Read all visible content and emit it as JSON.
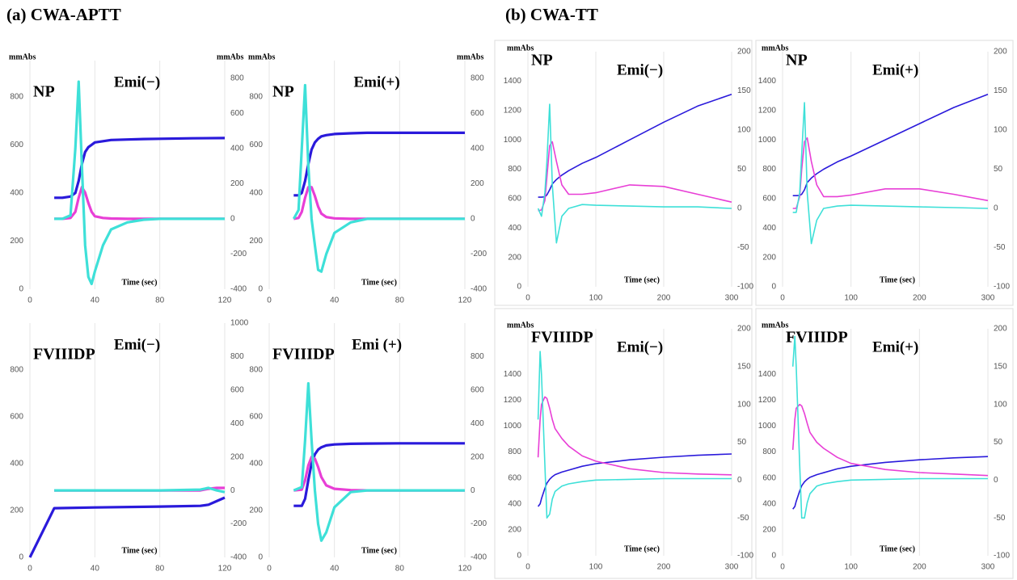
{
  "panel_titles": [
    "(a) CWA-APTT",
    "(b) CWA-TT"
  ],
  "chart_data": [
    {
      "type": "line",
      "title": "NP",
      "subtitle": "Emi(−)",
      "y_label": "mmAbs",
      "y2_label": "mmAbs",
      "x_label": "Time (sec)",
      "xlim": [
        0,
        120
      ],
      "xticks": [
        0,
        40,
        80,
        120
      ],
      "ylim": [
        0,
        950
      ],
      "yticks": [
        0,
        200,
        400,
        600,
        800
      ],
      "y2lim": [
        -400,
        900
      ],
      "y2ticks": [
        -400,
        -200,
        0,
        200,
        400,
        600,
        800
      ],
      "grid": true,
      "x": [
        15,
        20,
        25,
        28,
        30,
        32,
        34,
        36,
        38,
        40,
        45,
        50,
        60,
        70,
        80,
        100,
        120
      ],
      "series": [
        {
          "color": "#2a1adb",
          "values": [
            380,
            380,
            385,
            400,
            450,
            520,
            570,
            590,
            600,
            610,
            615,
            620,
            622,
            624,
            625,
            627,
            628
          ]
        },
        {
          "color": "#e83fd6",
          "axis": "y2",
          "values": [
            0,
            0,
            5,
            40,
            120,
            180,
            150,
            90,
            40,
            15,
            5,
            2,
            0,
            0,
            0,
            0,
            0
          ]
        },
        {
          "color": "#3ee0d8",
          "axis": "y2",
          "values": [
            0,
            0,
            20,
            400,
            780,
            300,
            -150,
            -330,
            -370,
            -300,
            -150,
            -60,
            -20,
            -5,
            0,
            0,
            0
          ]
        }
      ]
    },
    {
      "type": "line",
      "title": "NP",
      "subtitle": "Emi(+)",
      "y_label": "mmAbs",
      "y2_label": "mmAbs",
      "x_label": "Time (sec)",
      "xlim": [
        0,
        120
      ],
      "xticks": [
        0,
        40,
        80,
        120
      ],
      "ylim": [
        0,
        950
      ],
      "yticks": [
        0,
        200,
        400,
        600,
        800
      ],
      "y2lim": [
        -400,
        900
      ],
      "y2ticks": [
        -400,
        -200,
        0,
        200,
        400,
        600,
        800
      ],
      "grid": true,
      "x": [
        15,
        18,
        20,
        22,
        24,
        26,
        28,
        30,
        32,
        35,
        40,
        50,
        60,
        80,
        100,
        120
      ],
      "series": [
        {
          "color": "#2a1adb",
          "values": [
            390,
            390,
            400,
            450,
            520,
            580,
            610,
            625,
            635,
            640,
            645,
            648,
            650,
            650,
            650,
            650
          ]
        },
        {
          "color": "#e83fd6",
          "axis": "y2",
          "values": [
            0,
            5,
            40,
            120,
            180,
            180,
            130,
            70,
            30,
            10,
            3,
            0,
            0,
            0,
            0,
            0
          ]
        },
        {
          "color": "#3ee0d8",
          "axis": "y2",
          "values": [
            0,
            50,
            400,
            760,
            300,
            0,
            -150,
            -290,
            -300,
            -200,
            -80,
            -20,
            0,
            0,
            0,
            0
          ]
        }
      ]
    },
    {
      "type": "line",
      "title": "FVIIIDP",
      "subtitle": "Emi(−)",
      "x_label": "Time (sec)",
      "xlim": [
        0,
        120
      ],
      "xticks": [
        0,
        40,
        80,
        120
      ],
      "ylim": [
        0,
        1000
      ],
      "yticks": [
        0,
        200,
        400,
        600,
        800
      ],
      "y2lim": [
        -400,
        1000
      ],
      "y2ticks": [
        -400,
        -200,
        0,
        200,
        400,
        600,
        800,
        1000
      ],
      "grid": true,
      "x": [
        0,
        15,
        40,
        80,
        105,
        110,
        115,
        120
      ],
      "series": [
        {
          "color": "#2a1adb",
          "values": [
            0,
            210,
            213,
            217,
            220,
            225,
            240,
            255
          ]
        },
        {
          "color": "#e83fd6",
          "axis": "y2",
          "values": [
            null,
            0,
            0,
            0,
            0,
            10,
            15,
            15
          ]
        },
        {
          "color": "#3ee0d8",
          "axis": "y2",
          "values": [
            null,
            0,
            0,
            0,
            5,
            15,
            0,
            -10
          ]
        }
      ]
    },
    {
      "type": "line",
      "title": "FVIIIDP",
      "subtitle": "Emi (+)",
      "x_label": "Time (sec)",
      "xlim": [
        0,
        120
      ],
      "xticks": [
        0,
        40,
        80,
        120
      ],
      "ylim": [
        0,
        1000
      ],
      "yticks": [
        0,
        200,
        400,
        600,
        800
      ],
      "y2lim": [
        -400,
        1000
      ],
      "y2ticks": [
        -400,
        -200,
        0,
        200,
        400,
        600,
        800
      ],
      "grid": true,
      "x": [
        15,
        20,
        22,
        24,
        26,
        28,
        30,
        32,
        35,
        40,
        50,
        60,
        80,
        100,
        120
      ],
      "series": [
        {
          "color": "#2a1adb",
          "values": [
            220,
            220,
            250,
            330,
            400,
            440,
            460,
            470,
            478,
            482,
            485,
            486,
            487,
            487,
            487
          ]
        },
        {
          "color": "#e83fd6",
          "axis": "y2",
          "values": [
            0,
            5,
            60,
            150,
            200,
            190,
            140,
            80,
            30,
            10,
            2,
            0,
            0,
            0,
            0
          ]
        },
        {
          "color": "#3ee0d8",
          "axis": "y2",
          "values": [
            0,
            20,
            300,
            640,
            300,
            0,
            -200,
            -300,
            -250,
            -100,
            -10,
            0,
            0,
            0,
            0
          ]
        }
      ]
    },
    {
      "type": "line",
      "title": "NP",
      "subtitle": "Emi(−)",
      "y_label": "mmAbs",
      "x_label": "Time (sec)",
      "xlim": [
        0,
        300
      ],
      "xticks": [
        0,
        100,
        200,
        300
      ],
      "ylim": [
        0,
        1600
      ],
      "yticks": [
        0,
        200,
        400,
        600,
        800,
        1000,
        1200,
        1400
      ],
      "y2lim": [
        -100,
        200
      ],
      "y2ticks": [
        -100,
        -50,
        0,
        50,
        100,
        150,
        200
      ],
      "grid": true,
      "x": [
        15,
        20,
        25,
        28,
        32,
        36,
        42,
        50,
        60,
        80,
        100,
        150,
        200,
        250,
        300
      ],
      "series": [
        {
          "color": "#2a1adb",
          "values": [
            610,
            610,
            612,
            625,
            660,
            700,
            730,
            760,
            790,
            840,
            880,
            1000,
            1120,
            1230,
            1310
          ]
        },
        {
          "color": "#e83fd6",
          "axis": "y2",
          "values": [
            -3,
            -2,
            10,
            40,
            80,
            85,
            60,
            30,
            18,
            18,
            20,
            30,
            28,
            18,
            8
          ]
        },
        {
          "color": "#3ee0d8",
          "axis": "y2",
          "values": [
            0,
            -10,
            20,
            60,
            133,
            30,
            -44,
            -10,
            0,
            5,
            4,
            3,
            2,
            2,
            0
          ]
        }
      ]
    },
    {
      "type": "line",
      "title": "NP",
      "subtitle": "Emi(+)",
      "y_label": "mmAbs",
      "x_label": "Time (sec)",
      "xlim": [
        0,
        300
      ],
      "xticks": [
        0,
        100,
        200,
        300
      ],
      "ylim": [
        0,
        1600
      ],
      "yticks": [
        0,
        200,
        400,
        600,
        800,
        1000,
        1200,
        1400
      ],
      "y2lim": [
        -100,
        200
      ],
      "y2ticks": [
        -100,
        -50,
        0,
        50,
        100,
        150,
        200
      ],
      "grid": true,
      "x": [
        15,
        20,
        25,
        28,
        32,
        36,
        42,
        50,
        60,
        80,
        100,
        150,
        200,
        250,
        300
      ],
      "series": [
        {
          "color": "#2a1adb",
          "values": [
            620,
            620,
            622,
            630,
            660,
            710,
            740,
            770,
            800,
            850,
            890,
            1000,
            1110,
            1220,
            1310
          ]
        },
        {
          "color": "#e83fd6",
          "axis": "y2",
          "values": [
            0,
            0,
            15,
            50,
            85,
            90,
            60,
            30,
            15,
            15,
            17,
            25,
            25,
            18,
            10
          ]
        },
        {
          "color": "#3ee0d8",
          "axis": "y2",
          "values": [
            -5,
            -5,
            20,
            70,
            135,
            20,
            -45,
            -15,
            0,
            3,
            4,
            3,
            2,
            1,
            0
          ]
        }
      ]
    },
    {
      "type": "line",
      "title": "FVIIIDP",
      "subtitle": "Emi(−)",
      "y_label": "mmAbs",
      "x_label": "Time (sec)",
      "xlim": [
        0,
        300
      ],
      "xticks": [
        0,
        100,
        200,
        300
      ],
      "ylim": [
        0,
        1750
      ],
      "yticks": [
        0,
        200,
        400,
        600,
        800,
        1000,
        1200,
        1400
      ],
      "y2lim": [
        -100,
        200
      ],
      "y2ticks": [
        -100,
        -50,
        0,
        50,
        100,
        150,
        200
      ],
      "grid": true,
      "x": [
        15,
        18,
        20,
        25,
        28,
        32,
        36,
        40,
        50,
        60,
        80,
        100,
        150,
        200,
        250,
        300
      ],
      "series": [
        {
          "color": "#2a1adb",
          "values": [
            380,
            400,
            440,
            520,
            560,
            590,
            610,
            625,
            645,
            660,
            690,
            710,
            740,
            760,
            775,
            785
          ]
        },
        {
          "color": "#e83fd6",
          "axis": "y2",
          "values": [
            30,
            80,
            100,
            110,
            108,
            95,
            80,
            68,
            55,
            45,
            32,
            25,
            15,
            10,
            8,
            7
          ]
        },
        {
          "color": "#3ee0d8",
          "axis": "y2",
          "values": [
            80,
            170,
            140,
            20,
            -50,
            -45,
            -25,
            -15,
            -8,
            -5,
            -2,
            0,
            1,
            2,
            2,
            2
          ]
        }
      ]
    },
    {
      "type": "line",
      "title": "FVIIIDP",
      "subtitle": "Emi(+)",
      "y_label": "mmAbs",
      "x_label": "Time (sec)",
      "xlim": [
        0,
        300
      ],
      "xticks": [
        0,
        100,
        200,
        300
      ],
      "ylim": [
        0,
        1750
      ],
      "yticks": [
        0,
        200,
        400,
        600,
        800,
        1000,
        1200,
        1400
      ],
      "y2lim": [
        -100,
        200
      ],
      "y2ticks": [
        -100,
        -50,
        0,
        50,
        100,
        150,
        200
      ],
      "grid": true,
      "x": [
        15,
        18,
        20,
        25,
        28,
        32,
        36,
        40,
        50,
        60,
        80,
        100,
        150,
        200,
        250,
        300
      ],
      "series": [
        {
          "color": "#2a1adb",
          "values": [
            360,
            380,
            420,
            500,
            540,
            570,
            590,
            605,
            625,
            640,
            670,
            690,
            720,
            740,
            755,
            765
          ]
        },
        {
          "color": "#e83fd6",
          "axis": "y2",
          "values": [
            40,
            80,
            95,
            100,
            98,
            88,
            75,
            63,
            50,
            42,
            30,
            22,
            14,
            10,
            8,
            6
          ]
        },
        {
          "color": "#3ee0d8",
          "axis": "y2",
          "values": [
            150,
            190,
            150,
            20,
            -50,
            -50,
            -30,
            -18,
            -8,
            -5,
            -2,
            0,
            1,
            2,
            2,
            2
          ]
        }
      ]
    }
  ]
}
